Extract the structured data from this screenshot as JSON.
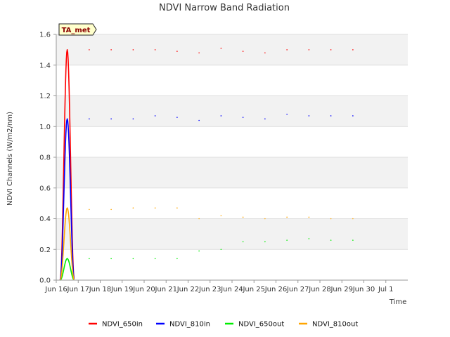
{
  "chart_data": {
    "type": "line",
    "title": "NDVI Narrow Band Radiation",
    "xlabel": "Time",
    "ylabel": "NDVI Channels (W/m2/nm)",
    "badge": "TA_met",
    "xlim_days": [
      0,
      16
    ],
    "x_ticks": [
      {
        "day": 0,
        "label": "Jun 16"
      },
      {
        "day": 1,
        "label": "Jun 17"
      },
      {
        "day": 2,
        "label": "Jun 18"
      },
      {
        "day": 3,
        "label": "Jun 19"
      },
      {
        "day": 4,
        "label": "Jun 20"
      },
      {
        "day": 5,
        "label": "Jun 21"
      },
      {
        "day": 6,
        "label": "Jun 22"
      },
      {
        "day": 7,
        "label": "Jun 23"
      },
      {
        "day": 8,
        "label": "Jun 24"
      },
      {
        "day": 9,
        "label": "Jun 25"
      },
      {
        "day": 10,
        "label": "Jun 26"
      },
      {
        "day": 11,
        "label": "Jun 27"
      },
      {
        "day": 12,
        "label": "Jun 28"
      },
      {
        "day": 13,
        "label": "Jun 29"
      },
      {
        "day": 14,
        "label": "Jun 30"
      },
      {
        "day": 15,
        "label": "Jul 1"
      }
    ],
    "ylim": [
      0,
      1.6
    ],
    "y_ticks": [
      "0.0",
      "0.2",
      "0.4",
      "0.6",
      "0.8",
      "1.0",
      "1.2",
      "1.4",
      "1.6"
    ],
    "grid": true,
    "legend_position": "bottom",
    "daily_peak_dates": [
      "Jun 16",
      "Jun 17",
      "Jun 18",
      "Jun 19",
      "Jun 20",
      "Jun 21",
      "Jun 22",
      "Jun 23",
      "Jun 24",
      "Jun 25",
      "Jun 26",
      "Jun 27",
      "Jun 28",
      "Jun 29"
    ],
    "series": [
      {
        "name": "NDVI_650in",
        "color": "#ff0000",
        "daily_peaks": [
          1.5,
          1.5,
          1.5,
          1.5,
          1.5,
          1.49,
          1.48,
          1.51,
          1.49,
          1.48,
          1.5,
          1.5,
          1.5,
          1.5
        ]
      },
      {
        "name": "NDVI_810in",
        "color": "#0000ff",
        "daily_peaks": [
          1.05,
          1.05,
          1.05,
          1.05,
          1.07,
          1.06,
          1.04,
          1.07,
          1.06,
          1.05,
          1.08,
          1.07,
          1.07,
          1.07
        ]
      },
      {
        "name": "NDVI_650out",
        "color": "#00ee00",
        "daily_peaks": [
          0.14,
          0.14,
          0.14,
          0.14,
          0.14,
          0.14,
          0.19,
          0.2,
          0.25,
          0.25,
          0.26,
          0.27,
          0.26,
          0.26
        ]
      },
      {
        "name": "NDVI_810out",
        "color": "#ffa500",
        "daily_peaks": [
          0.47,
          0.46,
          0.46,
          0.47,
          0.47,
          0.47,
          0.4,
          0.42,
          0.41,
          0.4,
          0.41,
          0.41,
          0.4,
          0.4
        ]
      }
    ]
  }
}
